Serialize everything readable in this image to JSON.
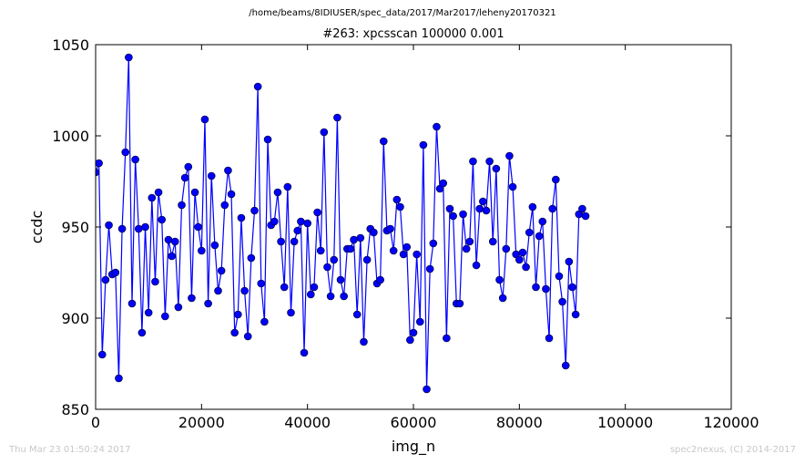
{
  "header": {
    "path": "/home/beams/8IDIUSER/spec_data/2017/Mar2017/leheny20170321"
  },
  "footer": {
    "timestamp": "Thu Mar 23 01:50:24 2017",
    "credit": "spec2nexus, (C) 2014-2017"
  },
  "chart_data": {
    "type": "line",
    "title": "#263: xpcsscan 100000 0.001",
    "xlabel": "img_n",
    "ylabel": "ccdc",
    "xlim": [
      0,
      120000
    ],
    "ylim": [
      850,
      1050
    ],
    "xticks": [
      0,
      20000,
      40000,
      60000,
      80000,
      100000,
      120000
    ],
    "yticks": [
      850,
      900,
      950,
      1000,
      1050
    ],
    "xtick_labels": [
      "0",
      "20000",
      "40000",
      "60000",
      "80000",
      "100000",
      "120000"
    ],
    "ytick_labels": [
      "850",
      "900",
      "950",
      "1000",
      "1050"
    ],
    "grid": false,
    "legend": false,
    "color": "#0000ff",
    "marker": "circle",
    "x_start": 0,
    "x_step": 625,
    "y": [
      980,
      985,
      880,
      921,
      951,
      924,
      925,
      867,
      949,
      991,
      1043,
      908,
      987,
      949,
      892,
      950,
      903,
      966,
      920,
      969,
      954,
      901,
      943,
      934,
      942,
      906,
      962,
      977,
      983,
      911,
      969,
      950,
      937,
      1009,
      908,
      978,
      940,
      915,
      926,
      962,
      981,
      968,
      892,
      902,
      955,
      915,
      890,
      933,
      959,
      1027,
      919,
      898,
      998,
      951,
      953,
      969,
      942,
      917,
      972,
      903,
      942,
      948,
      953,
      881,
      952,
      913,
      917,
      958,
      937,
      1002,
      928,
      912,
      932,
      1010,
      921,
      912,
      938,
      938,
      943,
      902,
      944,
      887,
      932,
      949,
      947,
      919,
      921,
      997,
      948,
      949,
      937,
      965,
      961,
      935,
      939,
      888,
      892,
      935,
      898,
      995,
      861,
      927,
      941,
      1005,
      971,
      974,
      889,
      960,
      956,
      908,
      908,
      957,
      938,
      942,
      986,
      929,
      960,
      964,
      959,
      986,
      942,
      982,
      921,
      911,
      938,
      989,
      972,
      935,
      932,
      936,
      928,
      947,
      961,
      917,
      945,
      953,
      916,
      889,
      960,
      976,
      923,
      909,
      874,
      931,
      917,
      902,
      957,
      960,
      956
    ]
  }
}
